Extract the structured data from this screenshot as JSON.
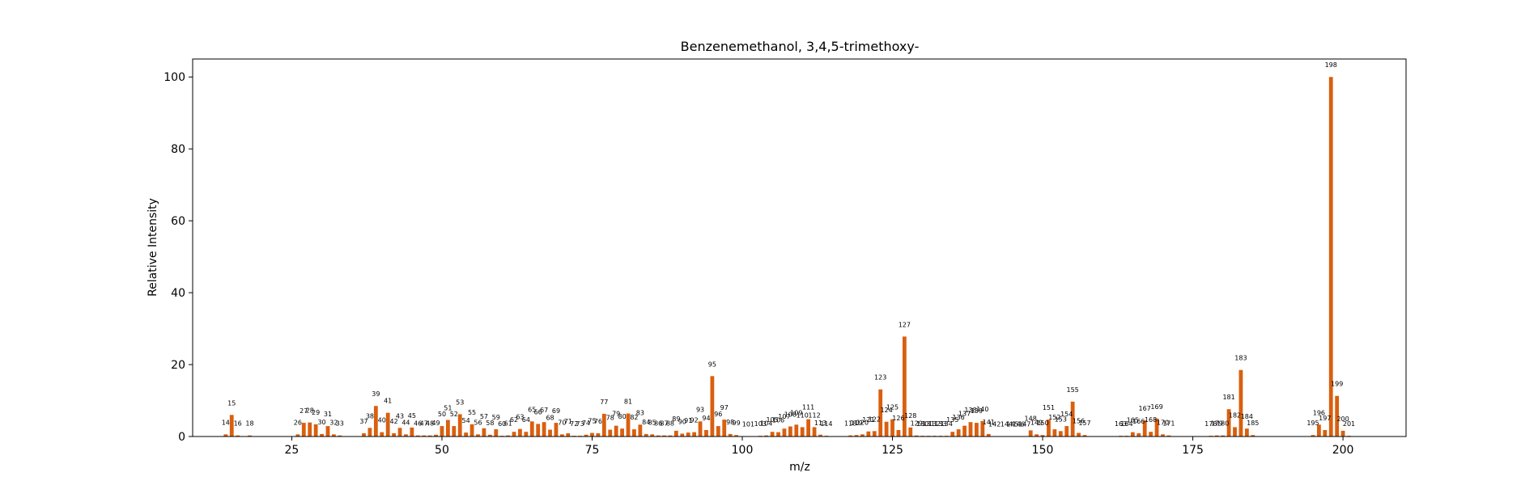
{
  "chart_data": {
    "type": "bar",
    "title": "Benzenemethanol, 3,4,5-trimethoxy-",
    "xlabel": "m/z",
    "ylabel": "Relative Intensity",
    "xlim": [
      8.5,
      210.5
    ],
    "ylim": [
      0,
      105
    ],
    "xticks": [
      25,
      50,
      75,
      100,
      125,
      150,
      175,
      200
    ],
    "yticks": [
      0,
      20,
      40,
      60,
      80,
      100
    ],
    "grid": false,
    "bar_color": "#d95f0e",
    "peaks": [
      {
        "mz": 14,
        "intensity": 0.6
      },
      {
        "mz": 15,
        "intensity": 6.0
      },
      {
        "mz": 16,
        "intensity": 0.3
      },
      {
        "mz": 18,
        "intensity": 0.3
      },
      {
        "mz": 26,
        "intensity": 0.6
      },
      {
        "mz": 27,
        "intensity": 3.8
      },
      {
        "mz": 28,
        "intensity": 3.9
      },
      {
        "mz": 29,
        "intensity": 3.4
      },
      {
        "mz": 30,
        "intensity": 0.7
      },
      {
        "mz": 31,
        "intensity": 2.9
      },
      {
        "mz": 32,
        "intensity": 0.6
      },
      {
        "mz": 33,
        "intensity": 0.3
      },
      {
        "mz": 37,
        "intensity": 0.9
      },
      {
        "mz": 38,
        "intensity": 2.4
      },
      {
        "mz": 39,
        "intensity": 8.5
      },
      {
        "mz": 40,
        "intensity": 1.2
      },
      {
        "mz": 41,
        "intensity": 6.6
      },
      {
        "mz": 42,
        "intensity": 0.9
      },
      {
        "mz": 43,
        "intensity": 2.4
      },
      {
        "mz": 44,
        "intensity": 0.6
      },
      {
        "mz": 45,
        "intensity": 2.5
      },
      {
        "mz": 46,
        "intensity": 0.3
      },
      {
        "mz": 47,
        "intensity": 0.3
      },
      {
        "mz": 48,
        "intensity": 0.3
      },
      {
        "mz": 49,
        "intensity": 0.5
      },
      {
        "mz": 50,
        "intensity": 2.9
      },
      {
        "mz": 51,
        "intensity": 4.6
      },
      {
        "mz": 52,
        "intensity": 2.9
      },
      {
        "mz": 53,
        "intensity": 6.2
      },
      {
        "mz": 54,
        "intensity": 1.1
      },
      {
        "mz": 55,
        "intensity": 3.4
      },
      {
        "mz": 56,
        "intensity": 0.6
      },
      {
        "mz": 57,
        "intensity": 2.3
      },
      {
        "mz": 58,
        "intensity": 0.5
      },
      {
        "mz": 59,
        "intensity": 2.0
      },
      {
        "mz": 60,
        "intensity": 0.2
      },
      {
        "mz": 61,
        "intensity": 0.3
      },
      {
        "mz": 62,
        "intensity": 1.3
      },
      {
        "mz": 63,
        "intensity": 2.1
      },
      {
        "mz": 64,
        "intensity": 1.3
      },
      {
        "mz": 65,
        "intensity": 4.2
      },
      {
        "mz": 66,
        "intensity": 3.5
      },
      {
        "mz": 67,
        "intensity": 4.0
      },
      {
        "mz": 68,
        "intensity": 1.9
      },
      {
        "mz": 69,
        "intensity": 3.8
      },
      {
        "mz": 70,
        "intensity": 0.6
      },
      {
        "mz": 71,
        "intensity": 0.9
      },
      {
        "mz": 72,
        "intensity": 0.2
      },
      {
        "mz": 73,
        "intensity": 0.2
      },
      {
        "mz": 74,
        "intensity": 0.5
      },
      {
        "mz": 75,
        "intensity": 1.0
      },
      {
        "mz": 76,
        "intensity": 0.9
      },
      {
        "mz": 77,
        "intensity": 6.3
      },
      {
        "mz": 78,
        "intensity": 1.9
      },
      {
        "mz": 79,
        "intensity": 3.0
      },
      {
        "mz": 80,
        "intensity": 2.2
      },
      {
        "mz": 81,
        "intensity": 6.4
      },
      {
        "mz": 82,
        "intensity": 2.0
      },
      {
        "mz": 83,
        "intensity": 3.3
      },
      {
        "mz": 84,
        "intensity": 0.7
      },
      {
        "mz": 85,
        "intensity": 0.6
      },
      {
        "mz": 86,
        "intensity": 0.3
      },
      {
        "mz": 87,
        "intensity": 0.3
      },
      {
        "mz": 88,
        "intensity": 0.3
      },
      {
        "mz": 89,
        "intensity": 1.6
      },
      {
        "mz": 90,
        "intensity": 0.8
      },
      {
        "mz": 91,
        "intensity": 1.1
      },
      {
        "mz": 92,
        "intensity": 1.2
      },
      {
        "mz": 93,
        "intensity": 4.2
      },
      {
        "mz": 94,
        "intensity": 1.8
      },
      {
        "mz": 95,
        "intensity": 16.8
      },
      {
        "mz": 96,
        "intensity": 2.9
      },
      {
        "mz": 97,
        "intensity": 4.7
      },
      {
        "mz": 98,
        "intensity": 0.7
      },
      {
        "mz": 99,
        "intensity": 0.4
      },
      {
        "mz": 101,
        "intensity": 0.1
      },
      {
        "mz": 103,
        "intensity": 0.2
      },
      {
        "mz": 104,
        "intensity": 0.3
      },
      {
        "mz": 105,
        "intensity": 1.3
      },
      {
        "mz": 106,
        "intensity": 1.2
      },
      {
        "mz": 107,
        "intensity": 2.2
      },
      {
        "mz": 108,
        "intensity": 2.8
      },
      {
        "mz": 109,
        "intensity": 3.3
      },
      {
        "mz": 110,
        "intensity": 2.6
      },
      {
        "mz": 111,
        "intensity": 4.8
      },
      {
        "mz": 112,
        "intensity": 2.6
      },
      {
        "mz": 113,
        "intensity": 0.5
      },
      {
        "mz": 114,
        "intensity": 0.2
      },
      {
        "mz": 118,
        "intensity": 0.3
      },
      {
        "mz": 119,
        "intensity": 0.4
      },
      {
        "mz": 120,
        "intensity": 0.6
      },
      {
        "mz": 121,
        "intensity": 1.4
      },
      {
        "mz": 122,
        "intensity": 1.5
      },
      {
        "mz": 123,
        "intensity": 13.1
      },
      {
        "mz": 124,
        "intensity": 4.1
      },
      {
        "mz": 125,
        "intensity": 4.8
      },
      {
        "mz": 126,
        "intensity": 1.8
      },
      {
        "mz": 127,
        "intensity": 27.8
      },
      {
        "mz": 128,
        "intensity": 2.5
      },
      {
        "mz": 129,
        "intensity": 0.3
      },
      {
        "mz": 130,
        "intensity": 0.2
      },
      {
        "mz": 131,
        "intensity": 0.2
      },
      {
        "mz": 132,
        "intensity": 0.2
      },
      {
        "mz": 133,
        "intensity": 0.2
      },
      {
        "mz": 134,
        "intensity": 0.2
      },
      {
        "mz": 135,
        "intensity": 1.3
      },
      {
        "mz": 136,
        "intensity": 2.0
      },
      {
        "mz": 137,
        "intensity": 3.0
      },
      {
        "mz": 138,
        "intensity": 4.0
      },
      {
        "mz": 139,
        "intensity": 3.8
      },
      {
        "mz": 140,
        "intensity": 4.3
      },
      {
        "mz": 141,
        "intensity": 0.7
      },
      {
        "mz": 142,
        "intensity": 0.1
      },
      {
        "mz": 144,
        "intensity": 0.1
      },
      {
        "mz": 145,
        "intensity": 0.1
      },
      {
        "mz": 146,
        "intensity": 0.1
      },
      {
        "mz": 147,
        "intensity": 0.1
      },
      {
        "mz": 148,
        "intensity": 1.7
      },
      {
        "mz": 149,
        "intensity": 0.6
      },
      {
        "mz": 150,
        "intensity": 0.4
      },
      {
        "mz": 151,
        "intensity": 4.7
      },
      {
        "mz": 152,
        "intensity": 2.0
      },
      {
        "mz": 153,
        "intensity": 1.5
      },
      {
        "mz": 154,
        "intensity": 2.9
      },
      {
        "mz": 155,
        "intensity": 9.7
      },
      {
        "mz": 156,
        "intensity": 1.0
      },
      {
        "mz": 157,
        "intensity": 0.4
      },
      {
        "mz": 163,
        "intensity": 0.2
      },
      {
        "mz": 164,
        "intensity": 0.2
      },
      {
        "mz": 165,
        "intensity": 1.2
      },
      {
        "mz": 166,
        "intensity": 0.9
      },
      {
        "mz": 167,
        "intensity": 4.5
      },
      {
        "mz": 168,
        "intensity": 1.3
      },
      {
        "mz": 169,
        "intensity": 5.0
      },
      {
        "mz": 170,
        "intensity": 0.6
      },
      {
        "mz": 171,
        "intensity": 0.3
      },
      {
        "mz": 178,
        "intensity": 0.2
      },
      {
        "mz": 179,
        "intensity": 0.3
      },
      {
        "mz": 180,
        "intensity": 0.3
      },
      {
        "mz": 181,
        "intensity": 7.6
      },
      {
        "mz": 182,
        "intensity": 2.6
      },
      {
        "mz": 183,
        "intensity": 18.5
      },
      {
        "mz": 184,
        "intensity": 2.2
      },
      {
        "mz": 185,
        "intensity": 0.4
      },
      {
        "mz": 195,
        "intensity": 0.4
      },
      {
        "mz": 196,
        "intensity": 3.3
      },
      {
        "mz": 197,
        "intensity": 1.8
      },
      {
        "mz": 198,
        "intensity": 100.0
      },
      {
        "mz": 199,
        "intensity": 11.3
      },
      {
        "mz": 200,
        "intensity": 1.6
      },
      {
        "mz": 201,
        "intensity": 0.2
      }
    ]
  }
}
